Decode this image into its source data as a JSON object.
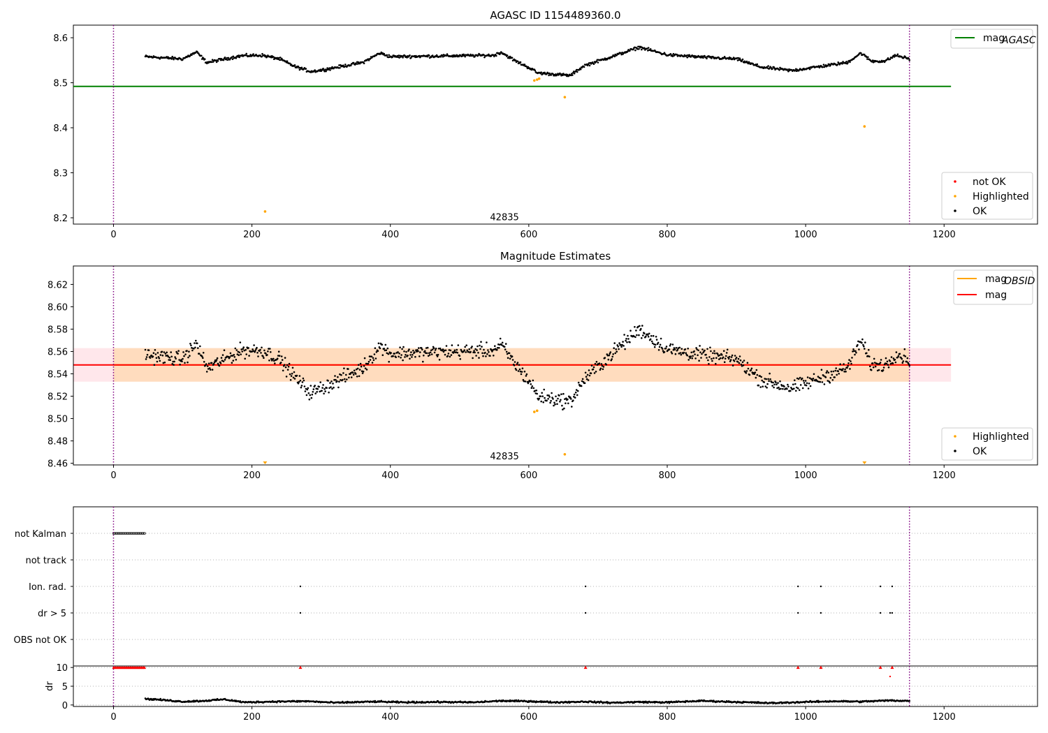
{
  "colors": {
    "ok": "#000000",
    "highlighted": "#ffa500",
    "not_ok": "#ff0000",
    "mag_agasc": "#008000",
    "mag_obsid": "#ffa500",
    "mag": "#ff0000",
    "band_obsid": "#ffdab9",
    "band_mag": "#ffe4e9",
    "obs_marker": "#800080",
    "grid": "#b0b0b0"
  },
  "chart_data": [
    {
      "id": "agasc",
      "type": "scatter",
      "title": "AGASC ID 1154489360.0",
      "xlim": [
        -58,
        1335
      ],
      "ylim": [
        8.186,
        8.628
      ],
      "xticks": [
        0,
        200,
        400,
        600,
        800,
        1000,
        1200
      ],
      "yticks": [
        8.2,
        8.3,
        8.4,
        8.5,
        8.6
      ],
      "yticks_decimals": 1,
      "hlines": [
        {
          "name": "mag_AGASC",
          "y": 8.492,
          "x": [
            -58,
            1210
          ],
          "color": "#008000"
        }
      ],
      "obs_markers": [
        0,
        1150
      ],
      "obs_label": {
        "text": "42835",
        "x": 575,
        "y": 8.19
      },
      "series": [
        {
          "name": "not OK",
          "values": []
        },
        {
          "name": "Highlighted",
          "points": [
            [
              219,
              8.214
            ],
            [
              608,
              8.505
            ],
            [
              612,
              8.507
            ],
            [
              615,
              8.509
            ],
            [
              652,
              8.468
            ],
            [
              1085,
              8.403
            ]
          ]
        },
        {
          "name": "OK",
          "x_start": 46,
          "x_end": 1150,
          "anchors": [
            [
              46,
              8.558
            ],
            [
              100,
              8.553
            ],
            [
              120,
              8.568
            ],
            [
              135,
              8.545
            ],
            [
              185,
              8.56
            ],
            [
              215,
              8.561
            ],
            [
              240,
              8.553
            ],
            [
              262,
              8.536
            ],
            [
              285,
              8.525
            ],
            [
              300,
              8.528
            ],
            [
              360,
              8.545
            ],
            [
              385,
              8.566
            ],
            [
              400,
              8.558
            ],
            [
              550,
              8.561
            ],
            [
              560,
              8.568
            ],
            [
              580,
              8.549
            ],
            [
              605,
              8.53
            ],
            [
              612,
              8.522
            ],
            [
              660,
              8.516
            ],
            [
              680,
              8.538
            ],
            [
              720,
              8.558
            ],
            [
              760,
              8.579
            ],
            [
              800,
              8.562
            ],
            [
              860,
              8.556
            ],
            [
              900,
              8.553
            ],
            [
              935,
              8.535
            ],
            [
              980,
              8.527
            ],
            [
              1060,
              8.545
            ],
            [
              1080,
              8.566
            ],
            [
              1095,
              8.548
            ],
            [
              1115,
              8.548
            ],
            [
              1130,
              8.561
            ],
            [
              1150,
              8.553
            ]
          ]
        }
      ],
      "legends": [
        {
          "position": "top-right",
          "items": [
            {
              "label": "mag",
              "sub": "AGASC",
              "kind": "line",
              "color": "#008000"
            }
          ]
        },
        {
          "position": "bottom-right",
          "items": [
            {
              "label": "not OK",
              "kind": "dot",
              "color": "#ff0000"
            },
            {
              "label": "Highlighted",
              "kind": "dot",
              "color": "#ffa500"
            },
            {
              "label": "OK",
              "kind": "dot",
              "color": "#000000"
            }
          ]
        }
      ]
    },
    {
      "id": "estimates",
      "type": "scatter",
      "title": "Magnitude Estimates",
      "xlim": [
        -58,
        1335
      ],
      "ylim": [
        8.4585,
        8.6365
      ],
      "xticks": [
        0,
        200,
        400,
        600,
        800,
        1000,
        1200
      ],
      "yticks": [
        8.46,
        8.48,
        8.5,
        8.52,
        8.54,
        8.56,
        8.58,
        8.6,
        8.62
      ],
      "yticks_decimals": 2,
      "bands": [
        {
          "name": "mag",
          "y": [
            8.533,
            8.563
          ],
          "x": [
            -58,
            1210
          ],
          "color": "#ffe4e9"
        },
        {
          "name": "mag_OBSID",
          "y": [
            8.533,
            8.563
          ],
          "x": [
            0,
            1150
          ],
          "color": "#ffdab9"
        }
      ],
      "hlines": [
        {
          "name": "mag_OBSID",
          "y": 8.548,
          "x": [
            0,
            1150
          ],
          "color": "#ffa500"
        },
        {
          "name": "mag",
          "y": 8.548,
          "x": [
            -58,
            1210
          ],
          "color": "#ff0000"
        }
      ],
      "obs_markers": [
        0,
        1150
      ],
      "obs_label": {
        "text": "42835",
        "x": 575,
        "y": 8.4635
      },
      "series": [
        {
          "name": "Highlighted",
          "points": [
            [
              219,
              8.462
            ],
            [
              608,
              8.506
            ],
            [
              612,
              8.507
            ],
            [
              652,
              8.468
            ],
            [
              1085,
              8.462
            ]
          ]
        },
        {
          "name": "OK",
          "x_start": 46,
          "x_end": 1150,
          "anchors": [
            [
              46,
              8.557
            ],
            [
              100,
              8.553
            ],
            [
              120,
              8.567
            ],
            [
              135,
              8.545
            ],
            [
              185,
              8.561
            ],
            [
              215,
              8.561
            ],
            [
              240,
              8.553
            ],
            [
              262,
              8.537
            ],
            [
              285,
              8.523
            ],
            [
              300,
              8.527
            ],
            [
              360,
              8.545
            ],
            [
              385,
              8.565
            ],
            [
              400,
              8.558
            ],
            [
              550,
              8.561
            ],
            [
              560,
              8.566
            ],
            [
              580,
              8.549
            ],
            [
              605,
              8.53
            ],
            [
              612,
              8.52
            ],
            [
              660,
              8.515
            ],
            [
              680,
              8.535
            ],
            [
              720,
              8.558
            ],
            [
              760,
              8.58
            ],
            [
              800,
              8.562
            ],
            [
              860,
              8.556
            ],
            [
              900,
              8.553
            ],
            [
              935,
              8.535
            ],
            [
              980,
              8.527
            ],
            [
              1060,
              8.545
            ],
            [
              1080,
              8.57
            ],
            [
              1095,
              8.548
            ],
            [
              1115,
              8.548
            ],
            [
              1130,
              8.558
            ],
            [
              1150,
              8.553
            ]
          ]
        }
      ],
      "legends": [
        {
          "position": "top-right",
          "items": [
            {
              "label": "mag",
              "sub": "OBSID",
              "kind": "line",
              "color": "#ffa500"
            },
            {
              "label": "mag",
              "sub": "",
              "kind": "line",
              "color": "#ff0000"
            }
          ]
        },
        {
          "position": "bottom-right",
          "items": [
            {
              "label": "Highlighted",
              "kind": "dot",
              "color": "#ffa500"
            },
            {
              "label": "OK",
              "kind": "dot",
              "color": "#000000"
            }
          ]
        }
      ]
    },
    {
      "id": "flags",
      "type": "scatter",
      "title": "",
      "xlim": [
        -58,
        1335
      ],
      "categories": [
        "not Kalman",
        "not track",
        "Ion. rad.",
        "dr > 5",
        "OBS not OK"
      ],
      "flags": {
        "not Kalman": {
          "range": [
            0,
            46
          ]
        },
        "not track": {
          "points": []
        },
        "Ion. rad.": {
          "points": [
            270,
            682,
            989,
            1022,
            1108,
            1125
          ]
        },
        "dr > 5": {
          "points": [
            270,
            682,
            989,
            1022,
            1108,
            1122,
            1125
          ]
        },
        "OBS not OK": {
          "points": []
        }
      },
      "obs_markers": [
        0,
        1150
      ]
    },
    {
      "id": "dr",
      "type": "scatter",
      "title": "",
      "xlim": [
        -58,
        1335
      ],
      "ylim": [
        -0.4,
        10.4
      ],
      "ylabel": "dr",
      "xticks": [
        0,
        200,
        400,
        600,
        800,
        1000,
        1200
      ],
      "yticks": [
        0,
        5,
        10
      ],
      "clipped_marker_y": 10,
      "clipped_x": [
        270,
        682,
        989,
        1022,
        1108,
        1125
      ],
      "clipped_range": [
        0,
        46
      ],
      "extra_red": [
        [
          1122,
          7.6
        ]
      ],
      "obs_markers": [
        0,
        1150
      ],
      "series": [
        {
          "name": "OK",
          "x_start": 46,
          "x_end": 1150,
          "anchors": [
            [
              46,
              1.6
            ],
            [
              60,
              1.5
            ],
            [
              80,
              1.2
            ],
            [
              100,
              0.9
            ],
            [
              130,
              1.1
            ],
            [
              160,
              1.5
            ],
            [
              190,
              0.7
            ],
            [
              230,
              0.9
            ],
            [
              280,
              1.0
            ],
            [
              320,
              0.6
            ],
            [
              380,
              0.9
            ],
            [
              420,
              0.7
            ],
            [
              470,
              0.8
            ],
            [
              520,
              0.7
            ],
            [
              560,
              1.1
            ],
            [
              600,
              1.0
            ],
            [
              640,
              0.7
            ],
            [
              680,
              0.9
            ],
            [
              720,
              0.6
            ],
            [
              760,
              0.8
            ],
            [
              800,
              0.7
            ],
            [
              850,
              1.1
            ],
            [
              900,
              0.8
            ],
            [
              950,
              0.5
            ],
            [
              1000,
              0.8
            ],
            [
              1040,
              1.0
            ],
            [
              1080,
              0.9
            ],
            [
              1120,
              1.2
            ],
            [
              1150,
              1.1
            ]
          ]
        }
      ]
    }
  ]
}
